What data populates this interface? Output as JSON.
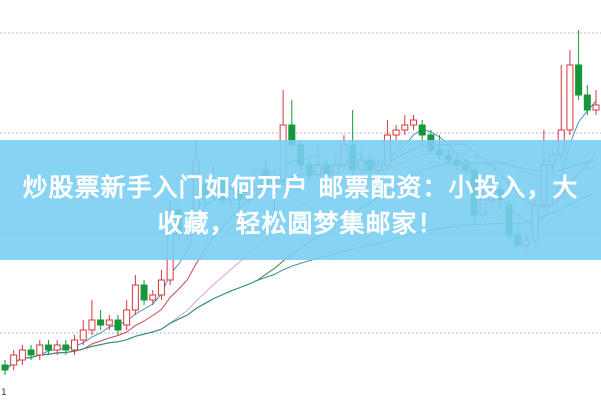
{
  "banner": {
    "line1": "炒股票新手入门如何开户 邮票配资：小投入，大",
    "line2": "收藏，轻松圆梦集邮家！"
  },
  "corner_label": "1",
  "colors": {
    "up": "#d8343f",
    "down": "#16973a",
    "grid": "#b9b9b9",
    "banner": "#7acef3",
    "ma": [
      "#4d8fc9",
      "#c04a5a",
      "#e39bd8",
      "#3a8a3a",
      "#2f8f8f"
    ]
  },
  "chart_data": {
    "type": "candlestick",
    "grid": "horizontal-dotted",
    "gridlines": [
      1,
      3,
      5,
      7
    ],
    "ylim": [
      0,
      8
    ],
    "candles_ochl_order": "open,close,high,low",
    "candles": [
      [
        0.36,
        0.26,
        0.46,
        0.16
      ],
      [
        0.36,
        0.56,
        0.66,
        0.26
      ],
      [
        0.46,
        0.66,
        0.76,
        0.36
      ],
      [
        0.66,
        0.56,
        0.76,
        0.46
      ],
      [
        0.56,
        0.76,
        0.86,
        0.46
      ],
      [
        0.76,
        0.66,
        0.86,
        0.56
      ],
      [
        0.66,
        0.76,
        0.86,
        0.56
      ],
      [
        0.76,
        0.66,
        0.86,
        0.56
      ],
      [
        0.66,
        0.86,
        0.96,
        0.56
      ],
      [
        0.86,
        1.06,
        1.26,
        0.76
      ],
      [
        1.06,
        1.26,
        1.66,
        0.96
      ],
      [
        1.26,
        1.16,
        1.46,
        1.06
      ],
      [
        1.16,
        1.26,
        1.36,
        1.06
      ],
      [
        1.26,
        1.06,
        1.36,
        0.96
      ],
      [
        1.16,
        1.46,
        1.66,
        1.06
      ],
      [
        1.46,
        1.96,
        2.16,
        1.36
      ],
      [
        1.96,
        1.66,
        2.06,
        1.56
      ],
      [
        1.66,
        1.76,
        1.86,
        1.56
      ],
      [
        1.76,
        2.06,
        2.26,
        1.66
      ],
      [
        2.06,
        3.46,
        3.66,
        1.96
      ],
      [
        3.46,
        2.96,
        3.56,
        2.86
      ],
      [
        2.96,
        3.06,
        3.16,
        2.86
      ],
      [
        3.06,
        4.46,
        4.86,
        2.96
      ],
      [
        3.96,
        3.76,
        4.06,
        3.56
      ],
      [
        3.76,
        4.06,
        4.36,
        3.66
      ],
      [
        4.06,
        3.66,
        4.16,
        3.56
      ],
      [
        3.66,
        3.86,
        3.96,
        3.56
      ],
      [
        3.86,
        3.66,
        3.96,
        3.46
      ],
      [
        3.66,
        3.86,
        4.16,
        3.56
      ],
      [
        3.86,
        4.26,
        4.36,
        3.76
      ],
      [
        4.26,
        3.96,
        4.46,
        3.86
      ],
      [
        3.96,
        4.06,
        4.26,
        3.46
      ],
      [
        4.06,
        5.16,
        5.86,
        3.96
      ],
      [
        5.16,
        4.76,
        5.66,
        4.66
      ],
      [
        4.76,
        4.36,
        4.86,
        4.26
      ],
      [
        4.36,
        4.16,
        4.46,
        4.06
      ],
      [
        4.16,
        4.36,
        4.76,
        4.06
      ],
      [
        4.36,
        4.16,
        4.46,
        4.06
      ],
      [
        4.16,
        4.36,
        4.56,
        4.06
      ],
      [
        4.36,
        4.76,
        4.96,
        4.26
      ],
      [
        4.76,
        4.26,
        5.46,
        4.16
      ],
      [
        4.26,
        4.46,
        4.66,
        4.06
      ],
      [
        4.46,
        4.26,
        4.56,
        4.06
      ],
      [
        4.26,
        4.36,
        4.46,
        4.16
      ],
      [
        4.36,
        4.96,
        5.26,
        4.26
      ],
      [
        4.96,
        5.06,
        5.16,
        4.86
      ],
      [
        5.06,
        5.16,
        5.36,
        4.96
      ],
      [
        5.16,
        5.26,
        5.36,
        5.06
      ],
      [
        5.16,
        4.96,
        5.26,
        4.66
      ],
      [
        4.96,
        4.66,
        5.06,
        4.56
      ],
      [
        4.66,
        4.56,
        4.96,
        4.46
      ],
      [
        4.56,
        4.46,
        4.66,
        4.36
      ],
      [
        4.46,
        4.36,
        4.56,
        4.26
      ],
      [
        4.36,
        4.26,
        4.46,
        4.16
      ],
      [
        4.26,
        3.36,
        4.36,
        3.16
      ],
      [
        3.36,
        3.66,
        3.86,
        3.26
      ],
      [
        3.66,
        3.86,
        4.06,
        3.56
      ],
      [
        3.86,
        3.66,
        3.96,
        3.46
      ],
      [
        3.56,
        2.96,
        3.66,
        2.86
      ],
      [
        2.96,
        2.76,
        3.06,
        2.66
      ],
      [
        2.76,
        2.86,
        2.96,
        2.66
      ],
      [
        2.86,
        3.56,
        3.66,
        2.76
      ],
      [
        3.56,
        4.36,
        5.06,
        3.46
      ],
      [
        4.36,
        4.56,
        4.66,
        4.26
      ],
      [
        4.56,
        5.06,
        6.36,
        4.46
      ],
      [
        5.06,
        6.36,
        6.66,
        4.96
      ],
      [
        6.36,
        5.76,
        7.06,
        5.66
      ],
      [
        5.76,
        5.46,
        5.96,
        5.36
      ],
      [
        5.46,
        5.56,
        5.86,
        5.36
      ]
    ],
    "moving_averages": [
      5,
      10,
      20,
      30,
      60
    ]
  }
}
